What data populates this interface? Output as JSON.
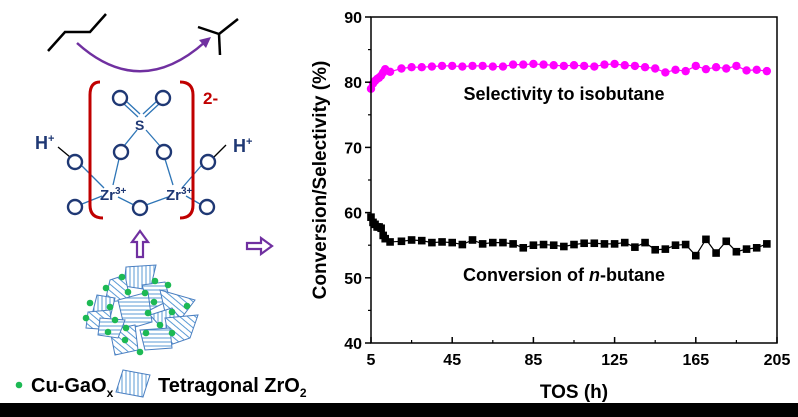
{
  "diagram": {
    "charge": "2-",
    "sulfur": "S",
    "proton": "H",
    "proton_sup": "+",
    "zirconium": "Zr",
    "zirconium_sup": "3+",
    "legend": {
      "dot_label": "Cu-GaO",
      "dot_label_sub": "x",
      "crystal_label": "Tetragonal ZrO",
      "crystal_label_sub": "2"
    },
    "colors": {
      "arrow": "#7030a0",
      "bracket": "#c00000",
      "atom": "#1f3874",
      "bond": "#2e75b6",
      "dot": "#1db954",
      "crystal": "#5b9bd5"
    }
  },
  "chart_data": {
    "type": "scatter",
    "title": "",
    "xlabel": "TOS (h)",
    "ylabel": "Conversion/Selectivity (%)",
    "xlim": [
      5,
      205
    ],
    "ylim": [
      40,
      90
    ],
    "xticks": [
      5,
      45,
      85,
      125,
      165,
      205
    ],
    "yticks": [
      40,
      50,
      60,
      70,
      80,
      90
    ],
    "grid": false,
    "annotations": [
      "Selectivity to isobutane",
      "Conversion of ",
      "n",
      "-butane"
    ],
    "series": [
      {
        "name": "Selectivity to isobutane",
        "color": "#ff00ff",
        "marker": "circle",
        "x": [
          5,
          6,
          7,
          8,
          9,
          10,
          11,
          12,
          14.4,
          20,
          25,
          30,
          35,
          40,
          45,
          50,
          55,
          60,
          65,
          70,
          75,
          80,
          85,
          90,
          95,
          100,
          105,
          110,
          115,
          120,
          125,
          130,
          135,
          140,
          145,
          150,
          155,
          160,
          165,
          170,
          175,
          180,
          185,
          190,
          195,
          200
        ],
        "y": [
          79,
          79.8,
          80.2,
          80.5,
          80.7,
          81,
          81.5,
          82,
          81.6,
          82.1,
          82.3,
          82.3,
          82.4,
          82.5,
          82.5,
          82.4,
          82.5,
          82.5,
          82.4,
          82.4,
          82.7,
          82.7,
          82.8,
          82.7,
          82.6,
          82.5,
          82.6,
          82.5,
          82.4,
          82.7,
          82.8,
          82.6,
          82.5,
          82.3,
          82.1,
          81.5,
          81.9,
          81.7,
          82.5,
          82.0,
          82.3,
          82.1,
          82.5,
          81.8,
          81.9,
          81.7
        ]
      },
      {
        "name": "Conversion of n-butane",
        "color": "#000000",
        "marker": "square",
        "x": [
          5,
          6,
          7,
          8,
          9,
          10,
          11,
          12,
          14.4,
          20,
          25,
          30,
          35,
          40,
          45,
          50,
          55,
          60,
          65,
          70,
          75,
          80,
          85,
          90,
          95,
          100,
          105,
          110,
          115,
          120,
          125,
          130,
          135,
          140,
          145,
          150,
          155,
          160,
          165,
          170,
          175,
          180,
          185,
          190,
          195,
          200
        ],
        "y": [
          59.3,
          58.5,
          58.2,
          57.8,
          57.8,
          57.6,
          56.5,
          56,
          55.5,
          55.6,
          55.8,
          55.7,
          55.4,
          55.5,
          55.4,
          55.1,
          55.8,
          55.2,
          55.4,
          55.4,
          55.2,
          54.6,
          55.0,
          55.1,
          55.0,
          54.8,
          55.1,
          55.3,
          55.3,
          55.2,
          55.2,
          55.4,
          54.7,
          55.4,
          54.3,
          54.4,
          55.0,
          55.1,
          53.4,
          55.9,
          53.8,
          55.6,
          54.0,
          54.4,
          54.6,
          55.2
        ]
      }
    ]
  }
}
